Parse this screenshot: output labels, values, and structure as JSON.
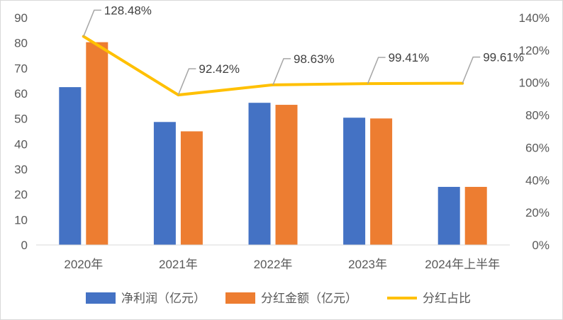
{
  "chart_data": {
    "type": "bar",
    "categories": [
      "2020年",
      "2021年",
      "2022年",
      "2023年",
      "2024年上半年"
    ],
    "series": [
      {
        "name": "净利润（亿元）",
        "type": "bar",
        "axis": "left",
        "color": "#4472C4",
        "values": [
          62.5,
          48.7,
          56.3,
          50.4,
          23.0
        ]
      },
      {
        "name": "分红金额（亿元）",
        "type": "bar",
        "axis": "left",
        "color": "#ED7D31",
        "values": [
          80.3,
          45.0,
          55.5,
          50.1,
          23.0
        ]
      },
      {
        "name": "分红占比",
        "type": "line",
        "axis": "right",
        "color": "#FFC000",
        "values": [
          128.48,
          92.42,
          98.63,
          99.41,
          99.61
        ],
        "labels": [
          "128.48%",
          "92.42%",
          "98.63%",
          "99.41%",
          "99.61%"
        ]
      }
    ],
    "left_axis": {
      "ylim": [
        0,
        90
      ],
      "ticks": [
        "0",
        "10",
        "20",
        "30",
        "40",
        "50",
        "60",
        "70",
        "80",
        "90"
      ]
    },
    "right_axis": {
      "ylim": [
        0,
        140
      ],
      "ticks": [
        "0%",
        "20%",
        "40%",
        "60%",
        "80%",
        "100%",
        "120%",
        "140%"
      ]
    },
    "grid": false,
    "legend_position": "bottom"
  }
}
